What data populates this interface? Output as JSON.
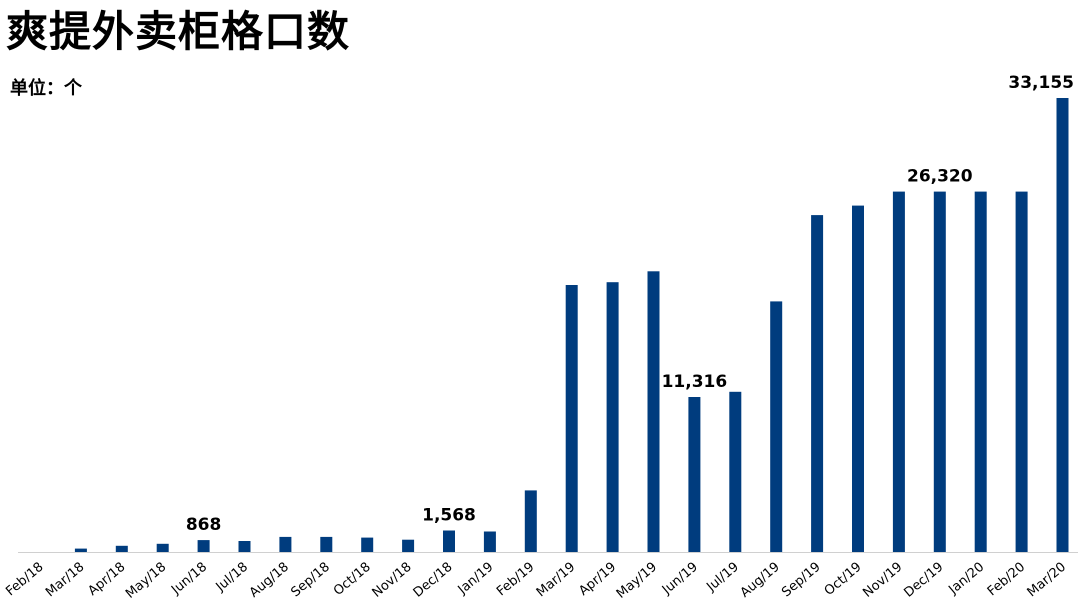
{
  "title": "爽提外卖柜格口数",
  "unit_label": "单位：个",
  "chart_data": {
    "type": "bar",
    "title": "爽提外卖柜格口数",
    "xlabel": "",
    "ylabel": "",
    "unit": "单位：个",
    "categories": [
      "Feb/18",
      "Mar/18",
      "Apr/18",
      "May/18",
      "Jun/18",
      "Jul/18",
      "Aug/18",
      "Sep/18",
      "Oct/18",
      "Nov/18",
      "Dec/18",
      "Jan/19",
      "Feb/19",
      "Mar/19",
      "Apr/19",
      "May/19",
      "Jun/19",
      "Jul/19",
      "Aug/19",
      "Sep/19",
      "Oct/19",
      "Nov/19",
      "Dec/19",
      "Jan/20",
      "Feb/20",
      "Mar/20"
    ],
    "values": [
      0,
      250,
      450,
      600,
      868,
      800,
      1100,
      1100,
      1050,
      900,
      1568,
      1500,
      4500,
      19500,
      19700,
      20500,
      11316,
      11700,
      18300,
      24600,
      25300,
      26320,
      26320,
      26320,
      26320,
      33155
    ],
    "data_labels": [
      {
        "index": 4,
        "text": "868"
      },
      {
        "index": 10,
        "text": "1,568"
      },
      {
        "index": 16,
        "text": "11,316"
      },
      {
        "index": 22,
        "text": "26,320"
      },
      {
        "index": 25,
        "text": "33,155"
      }
    ],
    "ylim": [
      0,
      33155
    ],
    "bar_color": "#003c7e",
    "grid": false,
    "legend": "none"
  }
}
